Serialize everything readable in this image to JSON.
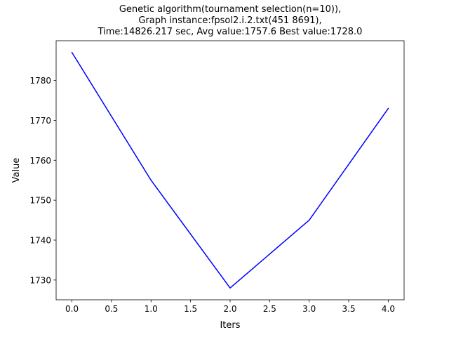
{
  "chart_data": {
    "type": "line",
    "title_lines": [
      "Genetic algorithm(tournament selection(n=10)),",
      "Graph instance:fpsol2.i.2.txt(451 8691),",
      "Time:14826.217 sec, Avg value:1757.6 Best value:1728.0"
    ],
    "xlabel": "Iters",
    "ylabel": "Value",
    "x": [
      0,
      1,
      2,
      3,
      4
    ],
    "series": [
      {
        "values": [
          1787,
          1755,
          1728,
          1745,
          1773
        ],
        "color": "#0000ff"
      }
    ],
    "xlim": [
      -0.2,
      4.2
    ],
    "ylim": [
      1725.05,
      1789.95
    ],
    "xticks": [
      0.0,
      0.5,
      1.0,
      1.5,
      2.0,
      2.5,
      3.0,
      3.5,
      4.0
    ],
    "xtick_labels": [
      "0.0",
      "0.5",
      "1.0",
      "1.5",
      "2.0",
      "2.5",
      "3.0",
      "3.5",
      "4.0"
    ],
    "yticks": [
      1730,
      1740,
      1750,
      1760,
      1770,
      1780
    ],
    "ytick_labels": [
      "1730",
      "1740",
      "1750",
      "1760",
      "1770",
      "1780"
    ],
    "grid": false
  }
}
